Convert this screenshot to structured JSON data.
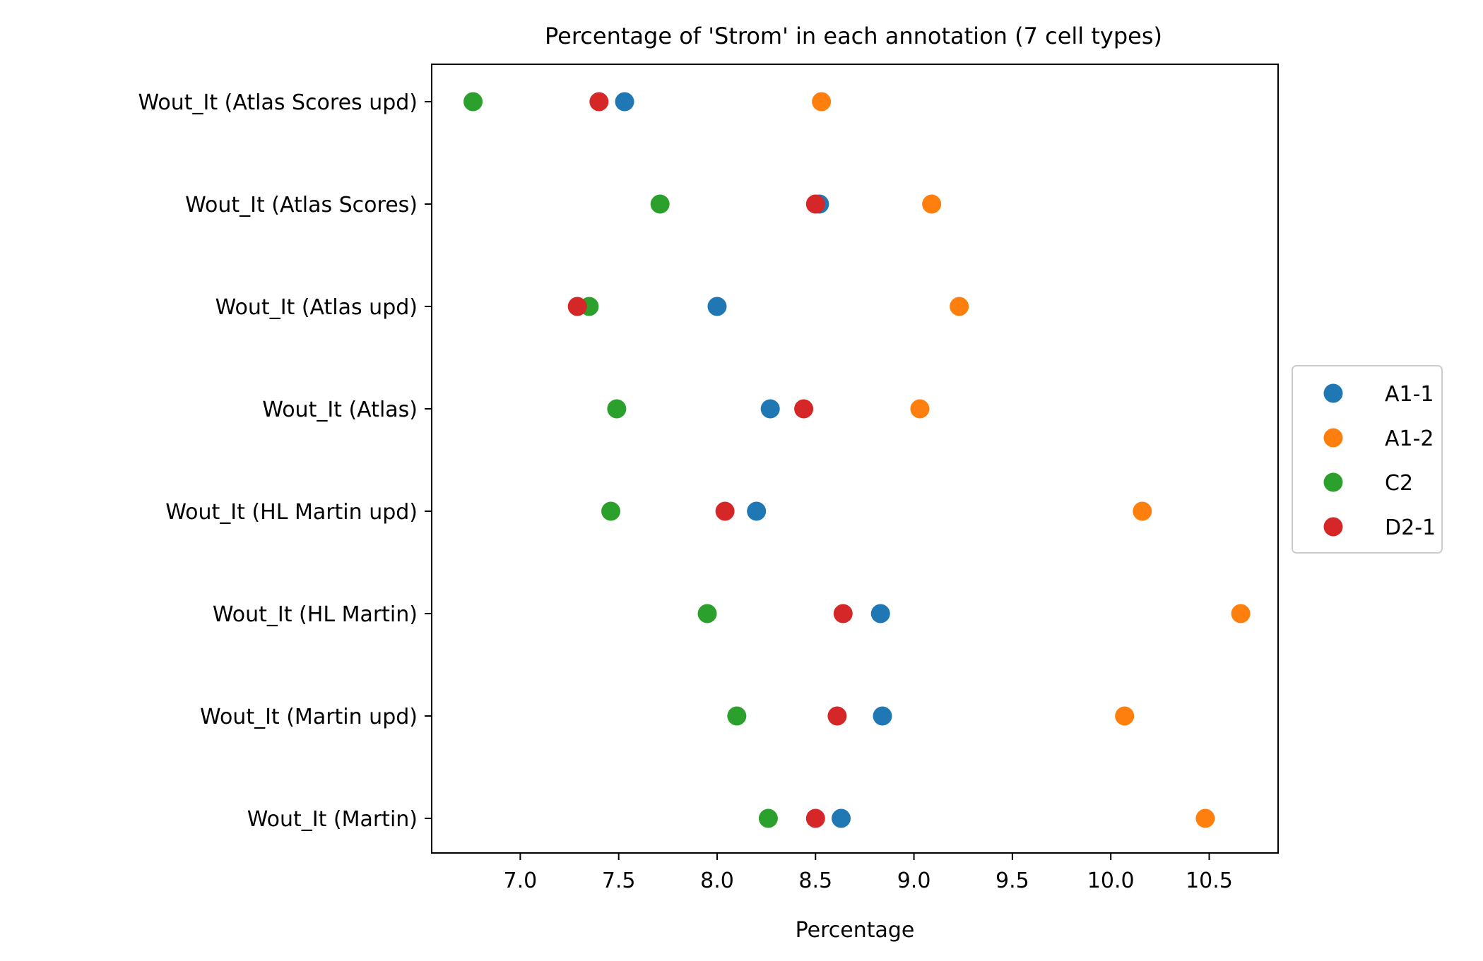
{
  "chart_data": {
    "type": "scatter",
    "title": "Percentage of 'Strom' in each annotation (7 cell types)",
    "xlabel": "Percentage",
    "ylabel": "",
    "xlim": [
      6.55,
      10.85
    ],
    "xticks": [
      "7.0",
      "7.5",
      "8.0",
      "8.5",
      "9.0",
      "9.5",
      "10.0",
      "10.5"
    ],
    "categories": [
      "Wout_It (Atlas Scores upd)",
      "Wout_It (Atlas Scores)",
      "Wout_It (Atlas upd)",
      "Wout_It (Atlas)",
      "Wout_It (HL Martin upd)",
      "Wout_It (HL Martin)",
      "Wout_It (Martin upd)",
      "Wout_It (Martin)"
    ],
    "series": [
      {
        "name": "A1-1",
        "color": "#1f77b4",
        "values": [
          7.53,
          8.52,
          8.0,
          8.27,
          8.2,
          8.83,
          8.84,
          8.63
        ]
      },
      {
        "name": "A1-2",
        "color": "#ff7f0e",
        "values": [
          8.53,
          9.09,
          9.23,
          9.03,
          10.16,
          10.66,
          10.07,
          10.48
        ]
      },
      {
        "name": "C2",
        "color": "#2ca02c",
        "values": [
          6.76,
          7.71,
          7.35,
          7.49,
          7.46,
          7.95,
          8.1,
          8.26
        ]
      },
      {
        "name": "D2-1",
        "color": "#d62728",
        "values": [
          7.4,
          8.5,
          7.29,
          8.44,
          8.04,
          8.64,
          8.61,
          8.5
        ]
      }
    ],
    "legend_position": "center-right",
    "grid": false
  }
}
